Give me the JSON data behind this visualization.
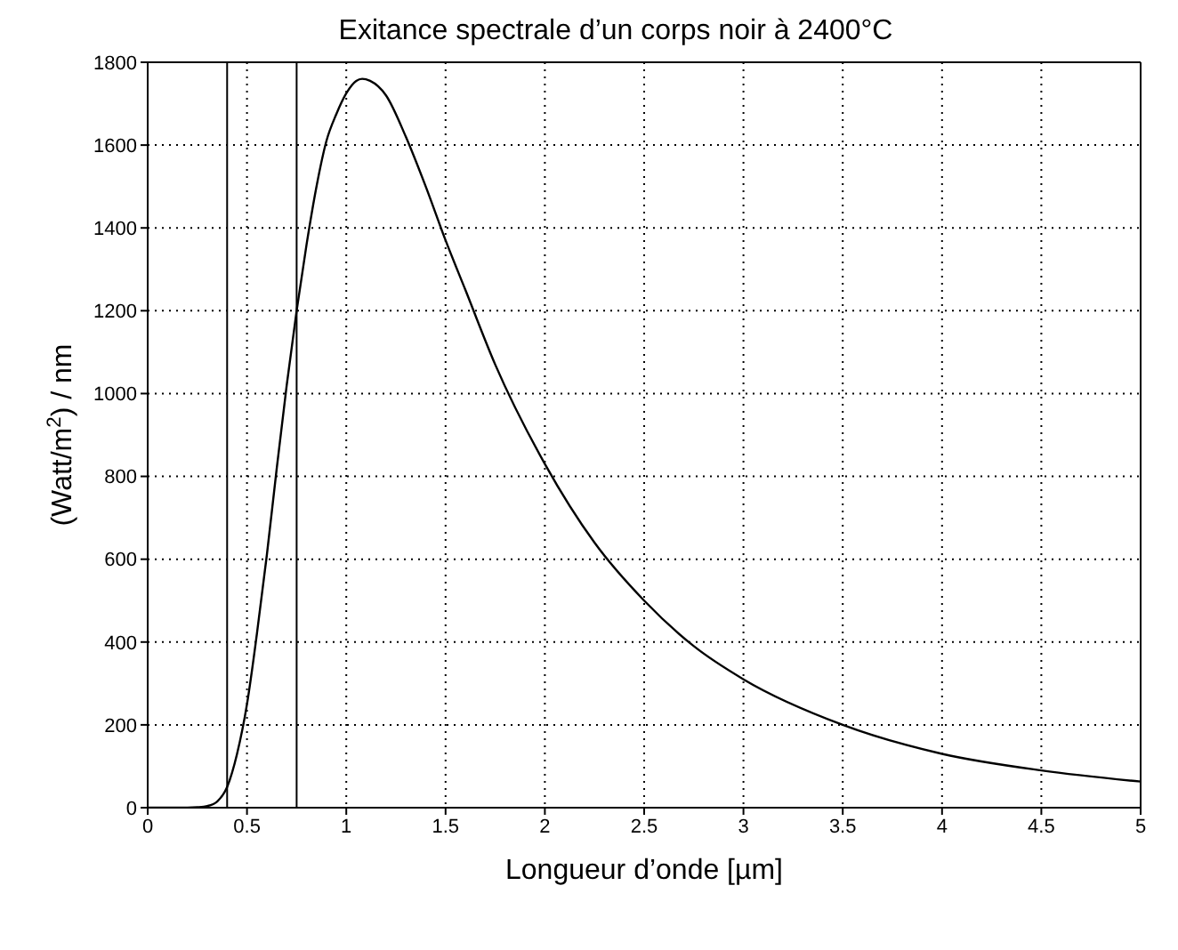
{
  "chart_data": {
    "type": "line",
    "title": "Exitance spectrale d’un corps noir à 2400°C",
    "xlabel": "Longueur d’onde [µm]",
    "ylabel": "(Watt/m$^{2}$) / nm",
    "x": [
      0,
      0.1,
      0.2,
      0.25,
      0.3,
      0.35,
      0.4,
      0.45,
      0.5,
      0.55,
      0.6,
      0.65,
      0.7,
      0.75,
      0.8,
      0.85,
      0.9,
      0.95,
      1.0,
      1.05,
      1.08,
      1.12,
      1.2,
      1.3,
      1.4,
      1.5,
      1.6,
      1.75,
      2.0,
      2.25,
      2.5,
      2.75,
      3.0,
      3.5,
      4.0,
      4.5,
      5.0
    ],
    "series": [
      {
        "color": "#000000",
        "values": [
          0,
          0,
          0,
          1,
          4,
          15,
          50,
          130,
          250,
          420,
          610,
          820,
          1020,
          1200,
          1360,
          1500,
          1610,
          1675,
          1725,
          1755,
          1760,
          1755,
          1720,
          1620,
          1500,
          1370,
          1250,
          1070,
          830,
          640,
          500,
          390,
          310,
          200,
          130,
          90,
          63
        ]
      }
    ],
    "xlim": [
      0,
      5
    ],
    "xticks": [
      0,
      0.5,
      1,
      1.5,
      2,
      2.5,
      3,
      3.5,
      4,
      4.5,
      5
    ],
    "ylim": [
      0,
      1800
    ],
    "yticks": [
      0,
      200,
      400,
      600,
      800,
      1000,
      1200,
      1400,
      1600,
      1800
    ],
    "grid": true,
    "line_style": "solid",
    "marker": "none",
    "ref_lines": [
      {
        "axis": "x",
        "value": 0.4,
        "color": "#000000"
      },
      {
        "axis": "x",
        "value": 0.75,
        "color": "#000000"
      }
    ]
  }
}
